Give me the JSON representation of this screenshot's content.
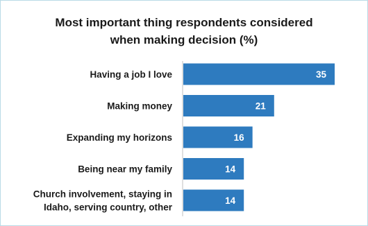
{
  "chart_data": {
    "type": "bar",
    "orientation": "horizontal",
    "title_lines": [
      "Most important thing respondents considered",
      "when making decision (%)"
    ],
    "categories": [
      [
        "Having a job I love"
      ],
      [
        "Making money"
      ],
      [
        "Expanding my horizons"
      ],
      [
        "Being near my family"
      ],
      [
        "Church involvement, staying in",
        "Idaho, serving country, other"
      ]
    ],
    "values": [
      35,
      21,
      16,
      14,
      14
    ],
    "value_labels": [
      "35",
      "21",
      "16",
      "14",
      "14"
    ],
    "xlim": [
      0,
      35
    ],
    "grid": false,
    "legend": "none",
    "colors": {
      "bar": "#2e7bbf",
      "axis": "#bfbfbf",
      "border": "#b9dbe6",
      "text": "#1a1a1a",
      "value_text": "#ffffff"
    }
  }
}
